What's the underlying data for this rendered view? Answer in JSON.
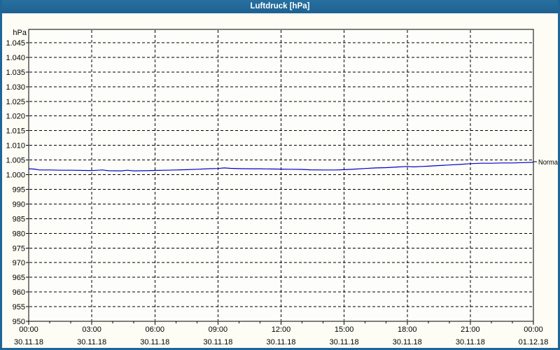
{
  "window": {
    "title": "Luftdruck [hPa]"
  },
  "colors": {
    "titlebar": "#226a9b",
    "window_border": "#1f6597",
    "background": "#fdfdf6",
    "plot_background": "#fdfdfa",
    "grid": "#000000",
    "axis": "#000000",
    "line": "#0000cc",
    "text": "#000000",
    "title_text": "#ffffff"
  },
  "chart_data": {
    "type": "line",
    "title": "Luftdruck [hPa]",
    "unit_label": "hPa",
    "xlim_hours": [
      0,
      24
    ],
    "ylim": [
      950,
      1045
    ],
    "grid": "dashed",
    "legend": "none",
    "yticks": [
      {
        "v": 1045,
        "label": "1.045"
      },
      {
        "v": 1040,
        "label": "1.040"
      },
      {
        "v": 1035,
        "label": "1.035"
      },
      {
        "v": 1030,
        "label": "1.030"
      },
      {
        "v": 1025,
        "label": "1.025"
      },
      {
        "v": 1020,
        "label": "1.020"
      },
      {
        "v": 1015,
        "label": "1.015"
      },
      {
        "v": 1010,
        "label": "1.010"
      },
      {
        "v": 1005,
        "label": "1.005"
      },
      {
        "v": 1000,
        "label": "1.000"
      },
      {
        "v": 995,
        "label": "995"
      },
      {
        "v": 990,
        "label": "990"
      },
      {
        "v": 985,
        "label": "985"
      },
      {
        "v": 980,
        "label": "980"
      },
      {
        "v": 975,
        "label": "975"
      },
      {
        "v": 970,
        "label": "970"
      },
      {
        "v": 965,
        "label": "965"
      },
      {
        "v": 960,
        "label": "960"
      },
      {
        "v": 955,
        "label": "955"
      },
      {
        "v": 950,
        "label": "950"
      }
    ],
    "xticks": [
      {
        "h": 0,
        "time": "00:00",
        "date": "30.11.18"
      },
      {
        "h": 3,
        "time": "03:00",
        "date": "30.11.18"
      },
      {
        "h": 6,
        "time": "06:00",
        "date": "30.11.18"
      },
      {
        "h": 9,
        "time": "09:00",
        "date": "30.11.18"
      },
      {
        "h": 12,
        "time": "12:00",
        "date": "30.11.18"
      },
      {
        "h": 15,
        "time": "15:00",
        "date": "30.11.18"
      },
      {
        "h": 18,
        "time": "18:00",
        "date": "30.11.18"
      },
      {
        "h": 21,
        "time": "21:00",
        "date": "30.11.18"
      },
      {
        "h": 24,
        "time": "00:00",
        "date": "01.12.18"
      }
    ],
    "x_minor_step_hours": 1,
    "series": [
      {
        "name": "Luftdruck",
        "color": "#0000cc",
        "points_hour_hpa": [
          [
            0,
            1002.0
          ],
          [
            0.3,
            1001.9
          ],
          [
            0.5,
            1001.6
          ],
          [
            1,
            1001.6
          ],
          [
            1.5,
            1001.5
          ],
          [
            2,
            1001.5
          ],
          [
            3,
            1001.4
          ],
          [
            3.5,
            1001.6
          ],
          [
            3.8,
            1001.35
          ],
          [
            4.4,
            1001.3
          ],
          [
            4.7,
            1001.5
          ],
          [
            5,
            1001.3
          ],
          [
            5.5,
            1001.35
          ],
          [
            6,
            1001.45
          ],
          [
            6.5,
            1001.5
          ],
          [
            7,
            1001.6
          ],
          [
            7.5,
            1001.7
          ],
          [
            8,
            1001.85
          ],
          [
            8.5,
            1002.0
          ],
          [
            9,
            1002.1
          ],
          [
            9.3,
            1002.3
          ],
          [
            9.6,
            1002.15
          ],
          [
            10,
            1002.05
          ],
          [
            10.5,
            1002.0
          ],
          [
            11,
            1002.0
          ],
          [
            11.5,
            1001.95
          ],
          [
            12,
            1001.9
          ],
          [
            12.5,
            1001.85
          ],
          [
            13,
            1001.8
          ],
          [
            13.4,
            1001.65
          ],
          [
            14,
            1001.6
          ],
          [
            14.6,
            1001.6
          ],
          [
            15,
            1001.7
          ],
          [
            15.5,
            1001.9
          ],
          [
            16,
            1002.1
          ],
          [
            16.5,
            1002.3
          ],
          [
            17,
            1002.4
          ],
          [
            17.5,
            1002.6
          ],
          [
            18,
            1002.8
          ],
          [
            18.3,
            1002.65
          ],
          [
            18.7,
            1002.8
          ],
          [
            19,
            1002.9
          ],
          [
            19.5,
            1003.1
          ],
          [
            20,
            1003.3
          ],
          [
            20.5,
            1003.5
          ],
          [
            21,
            1003.75
          ],
          [
            21.5,
            1003.9
          ],
          [
            22,
            1003.9
          ],
          [
            22.5,
            1004.0
          ],
          [
            23,
            1004.0
          ],
          [
            23.5,
            1004.1
          ],
          [
            24,
            1004.2
          ]
        ]
      }
    ],
    "annotations": [
      {
        "label": "Normal",
        "value": 1004.4,
        "position": "right"
      }
    ]
  }
}
